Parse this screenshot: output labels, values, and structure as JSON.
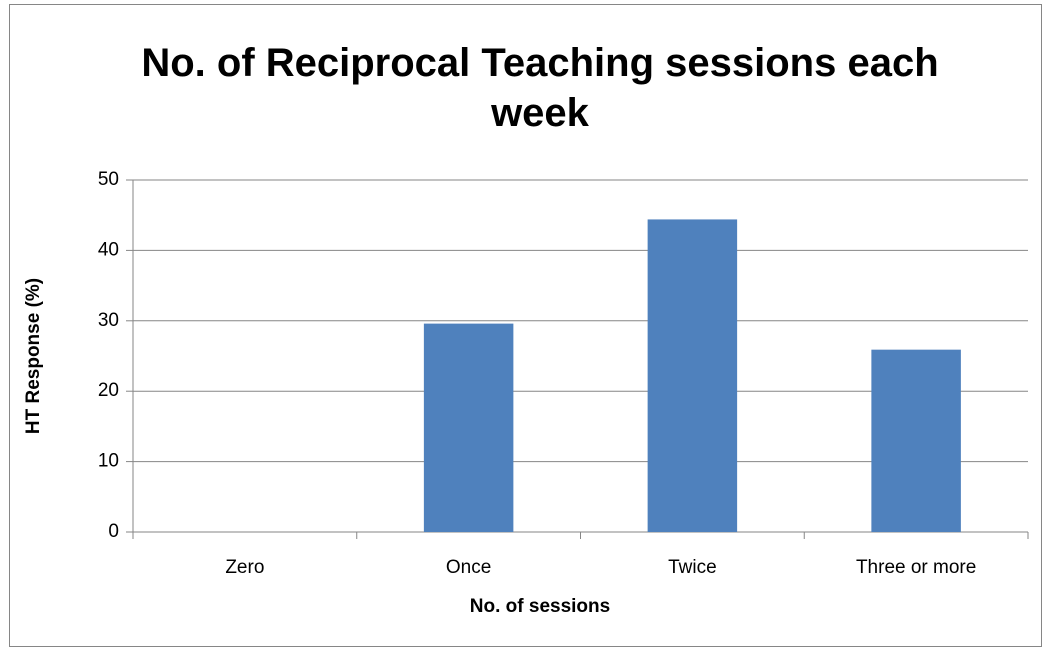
{
  "chart_data": {
    "type": "bar",
    "title": "No. of Reciprocal Teaching sessions each week",
    "x_label": "No. of sessions",
    "y_label": "HT Response (%)",
    "categories": [
      "Zero",
      "Once",
      "Twice",
      "Three or more"
    ],
    "values": [
      0,
      29.6,
      44.4,
      25.9
    ],
    "color": "#4f81bd",
    "ylim": [
      0,
      50
    ],
    "yticks": [
      0,
      10,
      20,
      30,
      40,
      50
    ],
    "grid": true
  }
}
